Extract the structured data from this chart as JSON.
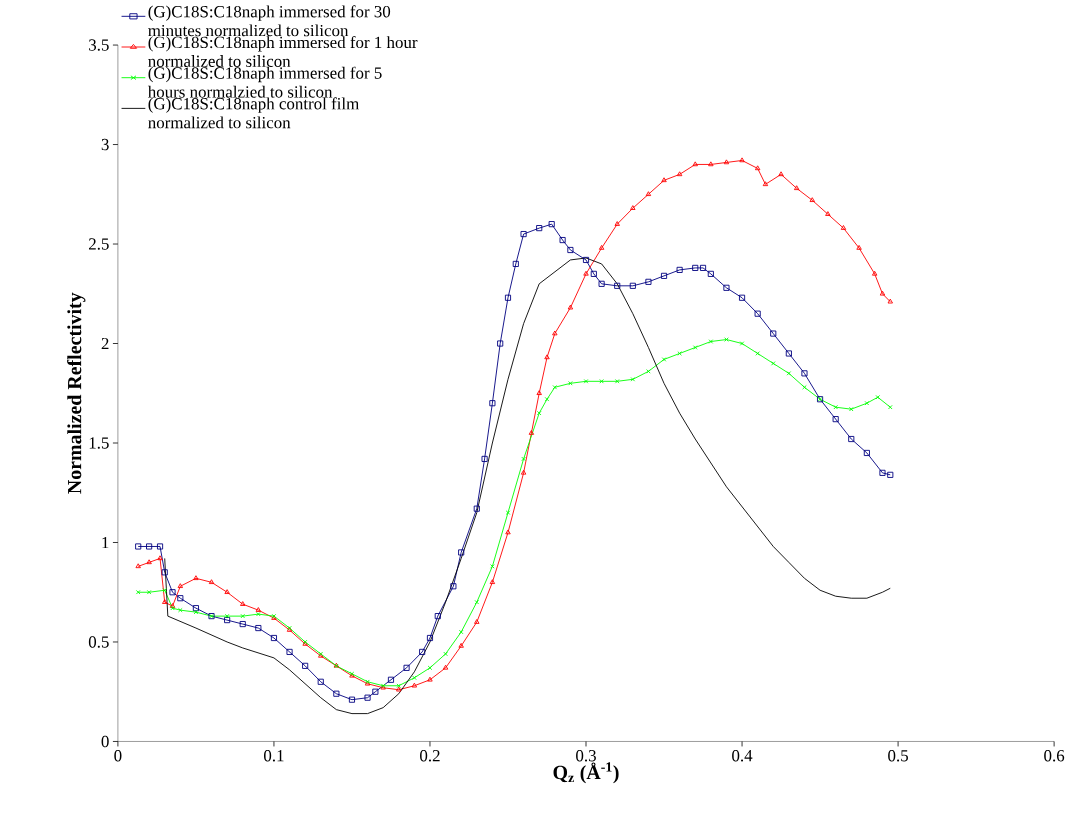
{
  "chart_data": {
    "type": "line",
    "xlabel": "Q$_{z}$ (Å$^{-1}$)",
    "ylabel": "Normalized Reflectivity",
    "xlim": [
      0,
      0.6
    ],
    "ylim": [
      0,
      3.5
    ],
    "xticks": [
      0,
      0.1,
      0.2,
      0.3,
      0.4,
      0.5,
      0.6
    ],
    "yticks": [
      0,
      0.5,
      1,
      1.5,
      2,
      2.5,
      3,
      3.5
    ],
    "grid": false,
    "legend": "top left",
    "series": [
      {
        "name": "(G)C18S:C18naph immersed for 30 minutes normalized to silicon",
        "color": "#000080",
        "marker": "square",
        "x": [
          0.013,
          0.02,
          0.027,
          0.03,
          0.035,
          0.04,
          0.05,
          0.06,
          0.07,
          0.08,
          0.09,
          0.1,
          0.11,
          0.12,
          0.13,
          0.14,
          0.15,
          0.16,
          0.165,
          0.175,
          0.185,
          0.195,
          0.2,
          0.205,
          0.215,
          0.22,
          0.23,
          0.235,
          0.24,
          0.245,
          0.25,
          0.255,
          0.26,
          0.27,
          0.278,
          0.285,
          0.29,
          0.3,
          0.305,
          0.31,
          0.32,
          0.33,
          0.34,
          0.35,
          0.36,
          0.37,
          0.375,
          0.38,
          0.39,
          0.4,
          0.41,
          0.42,
          0.43,
          0.44,
          0.45,
          0.46,
          0.47,
          0.48,
          0.49,
          0.495
        ],
        "values": [
          0.98,
          0.98,
          0.98,
          0.85,
          0.75,
          0.72,
          0.67,
          0.63,
          0.61,
          0.59,
          0.57,
          0.52,
          0.45,
          0.38,
          0.3,
          0.24,
          0.21,
          0.22,
          0.25,
          0.31,
          0.37,
          0.45,
          0.52,
          0.63,
          0.78,
          0.95,
          1.17,
          1.42,
          1.7,
          2.0,
          2.23,
          2.4,
          2.55,
          2.58,
          2.6,
          2.52,
          2.47,
          2.42,
          2.35,
          2.3,
          2.29,
          2.29,
          2.31,
          2.34,
          2.37,
          2.38,
          2.38,
          2.35,
          2.28,
          2.23,
          2.15,
          2.05,
          1.95,
          1.85,
          1.72,
          1.62,
          1.52,
          1.45,
          1.35,
          1.34
        ]
      },
      {
        "name": "(G)C18S:C18naph immersed for 1 hour normalized to silicon",
        "color": "#ff0000",
        "marker": "triangle",
        "x": [
          0.013,
          0.02,
          0.027,
          0.03,
          0.035,
          0.04,
          0.05,
          0.06,
          0.07,
          0.08,
          0.09,
          0.1,
          0.11,
          0.12,
          0.13,
          0.14,
          0.15,
          0.16,
          0.17,
          0.18,
          0.19,
          0.2,
          0.21,
          0.22,
          0.23,
          0.24,
          0.25,
          0.26,
          0.265,
          0.27,
          0.275,
          0.28,
          0.29,
          0.3,
          0.31,
          0.32,
          0.33,
          0.34,
          0.35,
          0.36,
          0.37,
          0.38,
          0.39,
          0.4,
          0.41,
          0.415,
          0.425,
          0.435,
          0.445,
          0.455,
          0.465,
          0.475,
          0.485,
          0.49,
          0.495
        ],
        "values": [
          0.88,
          0.9,
          0.92,
          0.7,
          0.68,
          0.78,
          0.82,
          0.8,
          0.75,
          0.69,
          0.66,
          0.62,
          0.56,
          0.49,
          0.43,
          0.38,
          0.33,
          0.29,
          0.27,
          0.26,
          0.28,
          0.31,
          0.37,
          0.48,
          0.6,
          0.8,
          1.05,
          1.35,
          1.55,
          1.75,
          1.93,
          2.05,
          2.18,
          2.35,
          2.48,
          2.6,
          2.68,
          2.75,
          2.82,
          2.85,
          2.9,
          2.9,
          2.91,
          2.92,
          2.88,
          2.8,
          2.85,
          2.78,
          2.72,
          2.65,
          2.58,
          2.48,
          2.35,
          2.25,
          2.21
        ]
      },
      {
        "name": "(G)C18S:C18naph immersed for 5 hours normalzied to silicon",
        "color": "#00ff00",
        "marker": "cross",
        "x": [
          0.013,
          0.02,
          0.03,
          0.035,
          0.04,
          0.05,
          0.06,
          0.07,
          0.08,
          0.09,
          0.1,
          0.11,
          0.12,
          0.13,
          0.14,
          0.15,
          0.16,
          0.17,
          0.18,
          0.19,
          0.2,
          0.21,
          0.22,
          0.23,
          0.24,
          0.25,
          0.26,
          0.27,
          0.275,
          0.28,
          0.29,
          0.3,
          0.31,
          0.32,
          0.33,
          0.34,
          0.35,
          0.36,
          0.37,
          0.38,
          0.39,
          0.4,
          0.41,
          0.42,
          0.43,
          0.44,
          0.45,
          0.46,
          0.47,
          0.48,
          0.487,
          0.495
        ],
        "values": [
          0.75,
          0.75,
          0.76,
          0.67,
          0.66,
          0.65,
          0.63,
          0.63,
          0.63,
          0.64,
          0.63,
          0.57,
          0.5,
          0.44,
          0.38,
          0.34,
          0.3,
          0.28,
          0.28,
          0.32,
          0.37,
          0.44,
          0.55,
          0.7,
          0.88,
          1.15,
          1.42,
          1.65,
          1.72,
          1.78,
          1.8,
          1.81,
          1.81,
          1.81,
          1.82,
          1.86,
          1.92,
          1.95,
          1.98,
          2.01,
          2.02,
          2.0,
          1.95,
          1.9,
          1.85,
          1.78,
          1.72,
          1.68,
          1.67,
          1.7,
          1.73,
          1.68
        ]
      },
      {
        "name": "(G)C18S:C18naph control film normalized to silicon",
        "color": "#000000",
        "marker": "none",
        "x": [
          0.03,
          0.032,
          0.05,
          0.07,
          0.08,
          0.1,
          0.11,
          0.12,
          0.13,
          0.14,
          0.15,
          0.16,
          0.17,
          0.18,
          0.19,
          0.2,
          0.21,
          0.22,
          0.23,
          0.24,
          0.25,
          0.26,
          0.27,
          0.28,
          0.29,
          0.3,
          0.31,
          0.32,
          0.33,
          0.34,
          0.35,
          0.36,
          0.37,
          0.38,
          0.39,
          0.4,
          0.41,
          0.42,
          0.43,
          0.44,
          0.45,
          0.46,
          0.47,
          0.48,
          0.49,
          0.495
        ],
        "values": [
          0.92,
          0.63,
          0.57,
          0.5,
          0.47,
          0.42,
          0.36,
          0.29,
          0.22,
          0.16,
          0.14,
          0.14,
          0.17,
          0.24,
          0.35,
          0.5,
          0.7,
          0.92,
          1.15,
          1.5,
          1.82,
          2.1,
          2.3,
          2.36,
          2.42,
          2.43,
          2.4,
          2.3,
          2.15,
          1.98,
          1.8,
          1.65,
          1.52,
          1.4,
          1.28,
          1.18,
          1.08,
          0.98,
          0.9,
          0.82,
          0.76,
          0.73,
          0.72,
          0.72,
          0.75,
          0.77
        ]
      }
    ]
  }
}
